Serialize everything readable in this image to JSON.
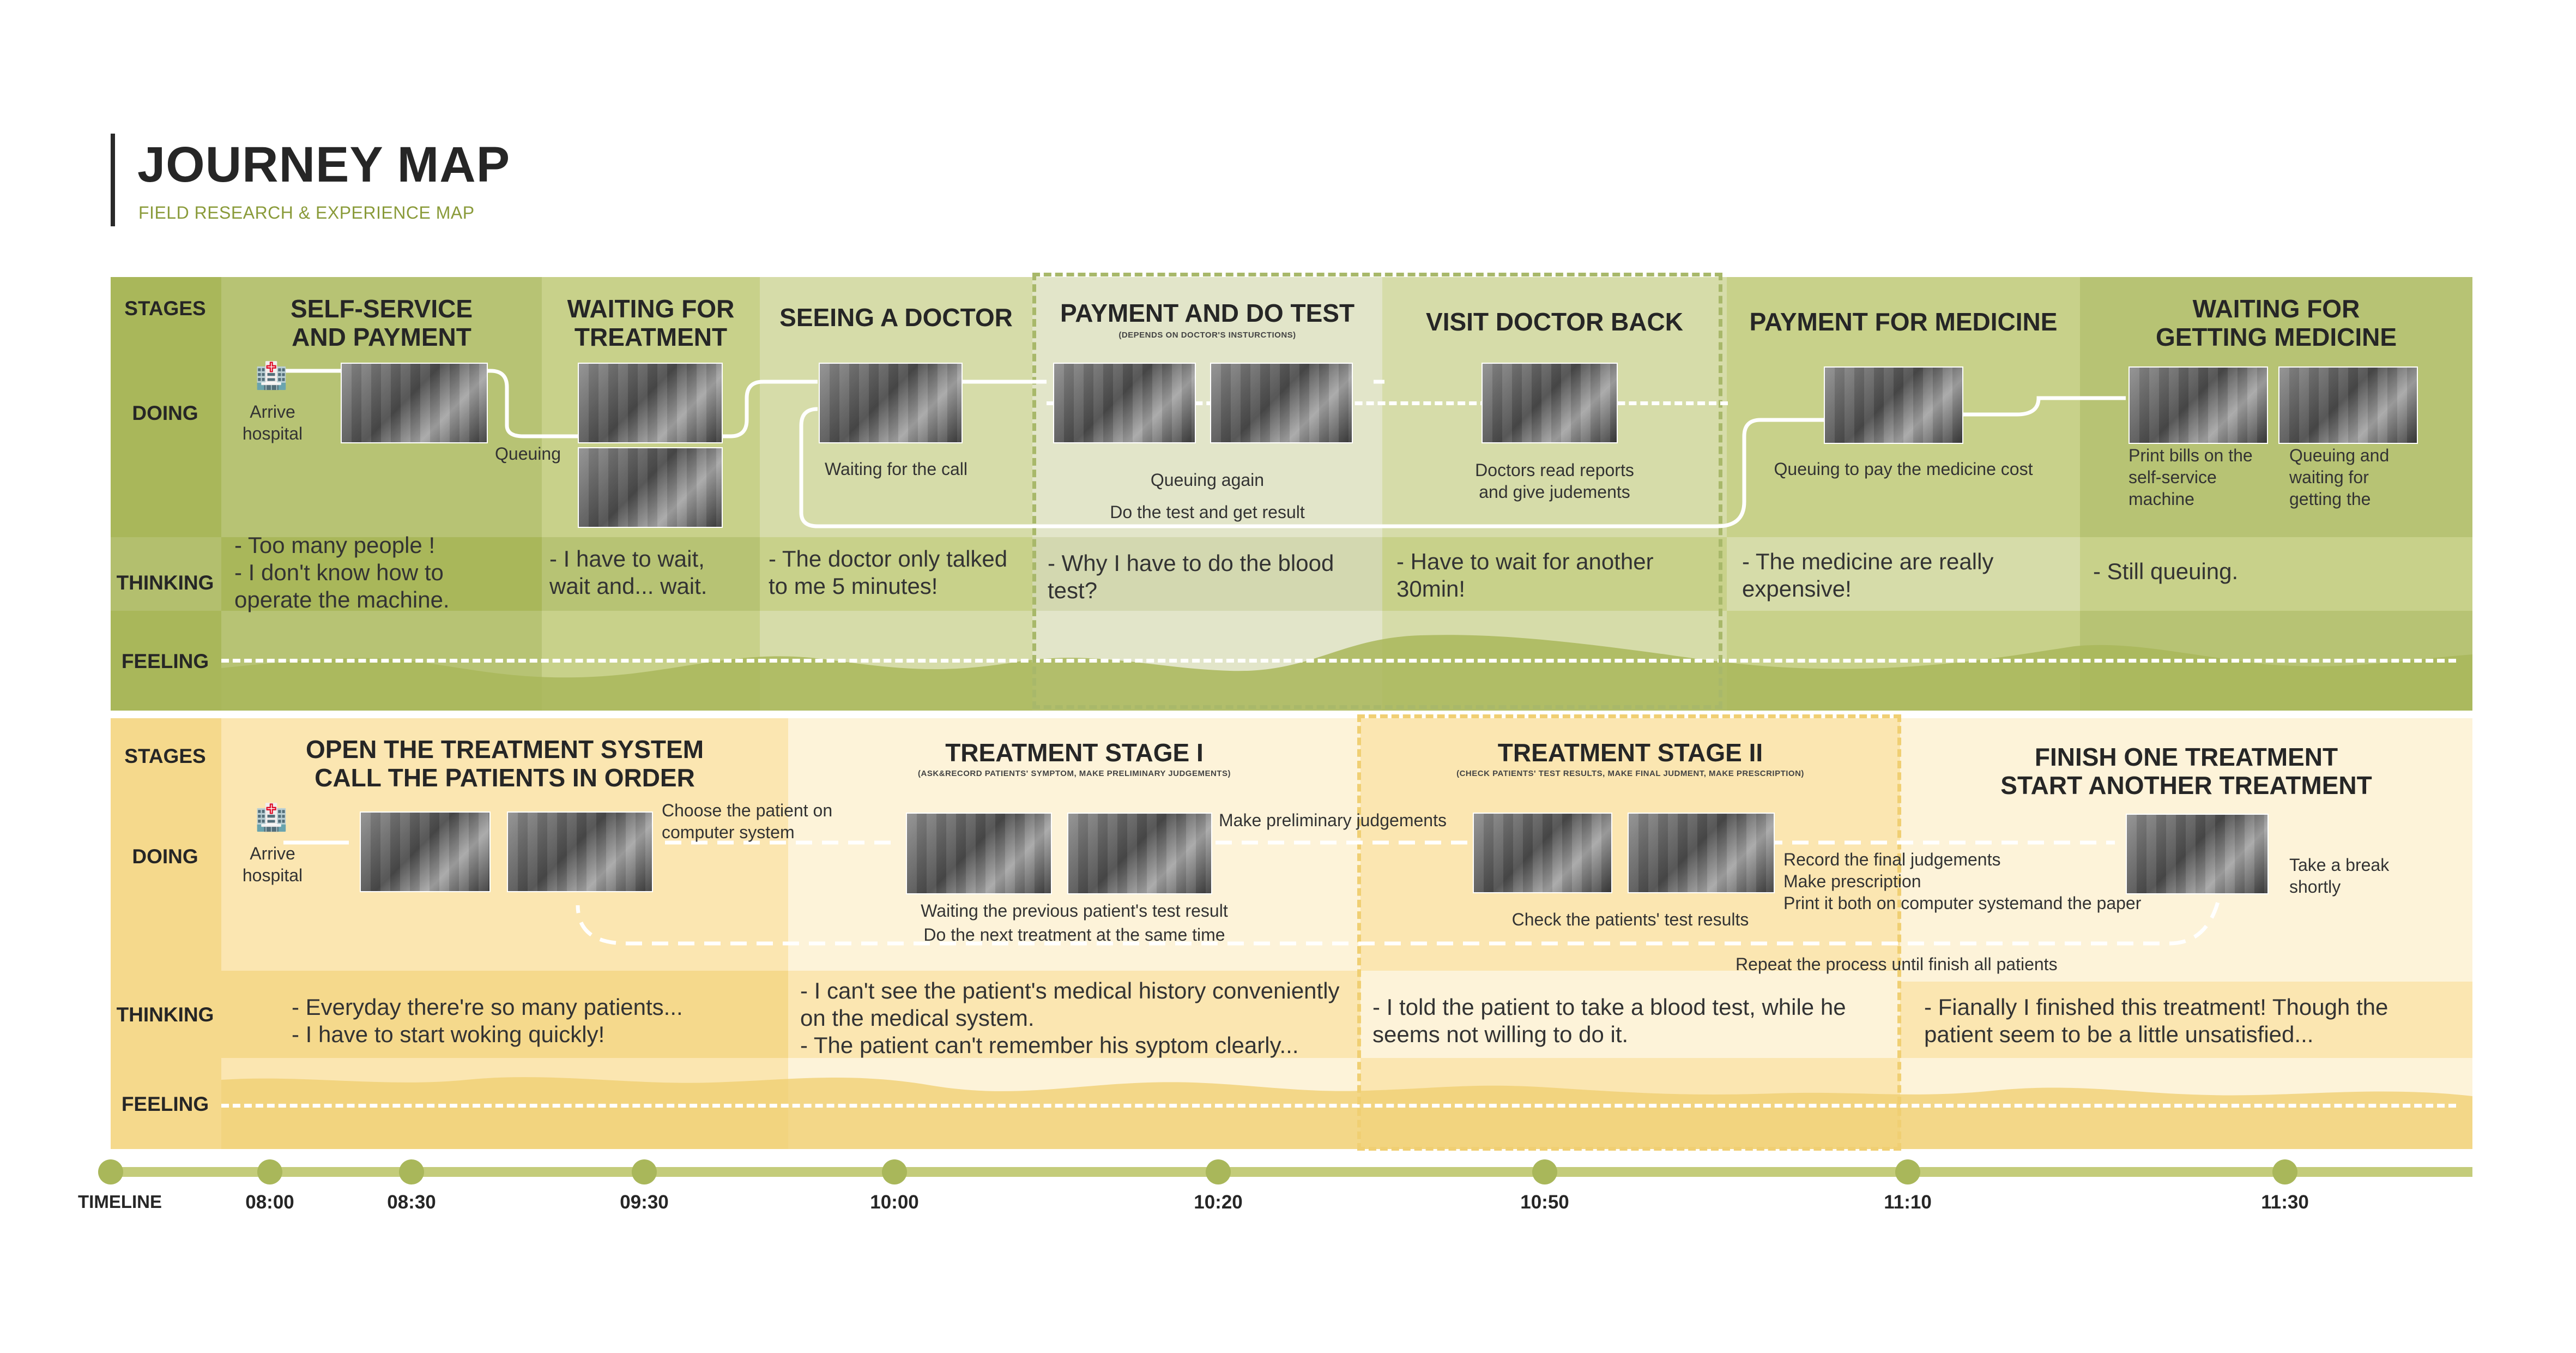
{
  "header": {
    "title": "JOURNEY MAP",
    "subtitle": "FIELD RESEARCH & EXPERIENCE MAP"
  },
  "colors": {
    "patient_dark": "#b7c374",
    "patient_mid": "#c8d18a",
    "patient_light": "#d6dca9",
    "patient_label": "#a9b75a",
    "doctor_dark": "#f5d98c",
    "doctor_mid": "#f9e6b0",
    "doctor_light": "#fdf3d9",
    "timeline": "#c4cc7a",
    "dashed_border_patient": "#a8b86a",
    "dashed_border_doctor": "#f0cf73"
  },
  "row_labels": {
    "stages": "STAGES",
    "doing": "DOING",
    "thinking": "THINKING",
    "feeling": "FEELING"
  },
  "patient": {
    "stages": [
      {
        "title": "SELF-SERVICE\nAND PAYMENT"
      },
      {
        "title": "WAITING FOR\nTREATMENT"
      },
      {
        "title": "SEEING A DOCTOR"
      },
      {
        "title": "PAYMENT AND DO TEST",
        "sub": "(DEPENDS ON DOCTOR'S INSTURCTIONS)"
      },
      {
        "title": "VISIT DOCTOR BACK"
      },
      {
        "title": "PAYMENT FOR MEDICINE"
      },
      {
        "title": "WAITING FOR\nGETTING MEDICINE"
      }
    ],
    "doing": {
      "arrive": "Arrive\nhospital",
      "queuing": "Queuing",
      "waiting_call": "Waiting for the call",
      "queuing_again": "Queuing again",
      "do_test": "Do the test and get result",
      "doctors_read": "Doctors read reports\nand give judements",
      "queuing_pay": "Queuing to pay the medicine cost",
      "print_bills": "Print bills on the\nself-service\nmachine",
      "queuing_waiting": "Queuing and\nwaiting for\ngetting the"
    },
    "thinking": [
      "- Too many people !\n- I don't know how to\noperate the machine.",
      "- I have to wait,\nwait and... wait.",
      "- The doctor only talked\nto me 5 minutes!",
      "- Why I have to do the blood\ntest?",
      "- Have to wait for another\n30min!",
      "- The medicine are really\nexpensive!",
      "- Still queuing."
    ]
  },
  "doctor": {
    "stages": [
      {
        "title": "OPEN THE TREATMENT SYSTEM\nCALL THE PATIENTS IN ORDER"
      },
      {
        "title": "TREATMENT STAGE I",
        "sub": "(ASK&RECORD PATIENTS' SYMPTOM, MAKE PRELIMINARY JUDGEMENTS)"
      },
      {
        "title": "TREATMENT STAGE II",
        "sub": "(CHECK PATIENTS' TEST RESULTS, MAKE FINAL JUDMENT, MAKE PRESCRIPTION)"
      },
      {
        "title": "FINISH ONE TREATMENT\nSTART ANOTHER TREATMENT"
      }
    ],
    "doing": {
      "arrive": "Arrive\nhospital",
      "choose": "Choose the patient on\ncomputer system",
      "waiting_prev": "Waiting the previous patient's test result",
      "do_next": "Do the next treatment at the same time",
      "make_prelim": "Make preliminary judgements",
      "check_results": "Check the patients' test results",
      "record": "Record the final judgements\nMake prescription\nPrint it both on computer systemand the paper",
      "repeat": "Repeat the process until finish all patients",
      "take_break": "Take a break\nshortly"
    },
    "thinking": [
      "- Everyday there're so many patients...\n- I have to start woking quickly!",
      "- I can't see the patient's medical history conveniently\non the medical system.\n- The patient can't remember his syptom clearly...",
      "- I told the patient to take a blood test, while he\nseems not willing to do it.",
      "- Fianally I finished this treatment! Though the\npatient seem to be a little unsatisfied..."
    ]
  },
  "timeline": {
    "label": "TIMELINE",
    "ticks": [
      "08:00",
      "08:30",
      "09:30",
      "10:00",
      "10:20",
      "10:50",
      "11:10",
      "11:30"
    ]
  }
}
